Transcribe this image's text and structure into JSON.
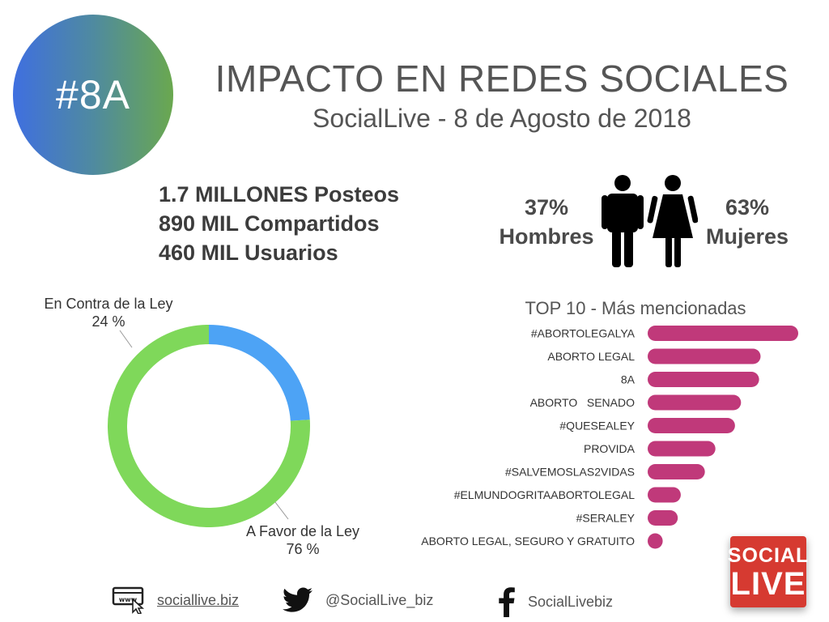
{
  "badge": {
    "text": "#8A",
    "gradient": [
      "#3f6fe0",
      "#6aa84f"
    ]
  },
  "title": "IMPACTO EN REDES SOCIALES",
  "subtitle": "SocialLive - 8 de Agosto de 2018",
  "stats": [
    "1.7 MILLONES Posteos",
    "890 MIL Compartidos",
    "460 MIL Usuarios"
  ],
  "gender": {
    "men": {
      "pct": "37%",
      "label": "Hombres",
      "icon": "man-icon"
    },
    "women": {
      "pct": "63%",
      "label": "Mujeres",
      "icon": "woman-icon"
    }
  },
  "chart_data": [
    {
      "type": "pie",
      "donut": true,
      "slices": [
        {
          "name": "En Contra de la Ley",
          "value": 24,
          "label": "24 %",
          "color": "#4da3f5"
        },
        {
          "name": "A Favor de la Ley",
          "value": 76,
          "label": "76 %",
          "color": "#7fd85a"
        }
      ]
    },
    {
      "type": "bar",
      "orientation": "horizontal",
      "title": "TOP 10 - Más mencionadas",
      "color": "#c0397a",
      "categories": [
        "#ABORTOLEGALYA",
        "ABORTO LEGAL",
        "8A",
        "ABORTO   SENADO",
        "#QUESEALEY",
        "PROVIDA",
        "#SALVEMOSLAS2VIDAS",
        "#ELMUNDOGRITAABORTOLEGAL",
        "#SERALEY",
        "ABORTO LEGAL, SEGURO Y GRATUITO"
      ],
      "values": [
        100,
        75,
        74,
        62,
        58,
        45,
        38,
        22,
        20,
        10
      ]
    }
  ],
  "footer": {
    "web": {
      "text": "sociallive.biz",
      "icon": "web-cursor-icon"
    },
    "twitter": {
      "text": "@SocialLive_biz",
      "icon": "twitter-bird-icon"
    },
    "facebook": {
      "text": "SocialLivebiz",
      "icon": "facebook-icon"
    }
  },
  "logo": {
    "line1": "SOCIAL",
    "line2": "LIVE",
    "color": "#d63a31"
  }
}
